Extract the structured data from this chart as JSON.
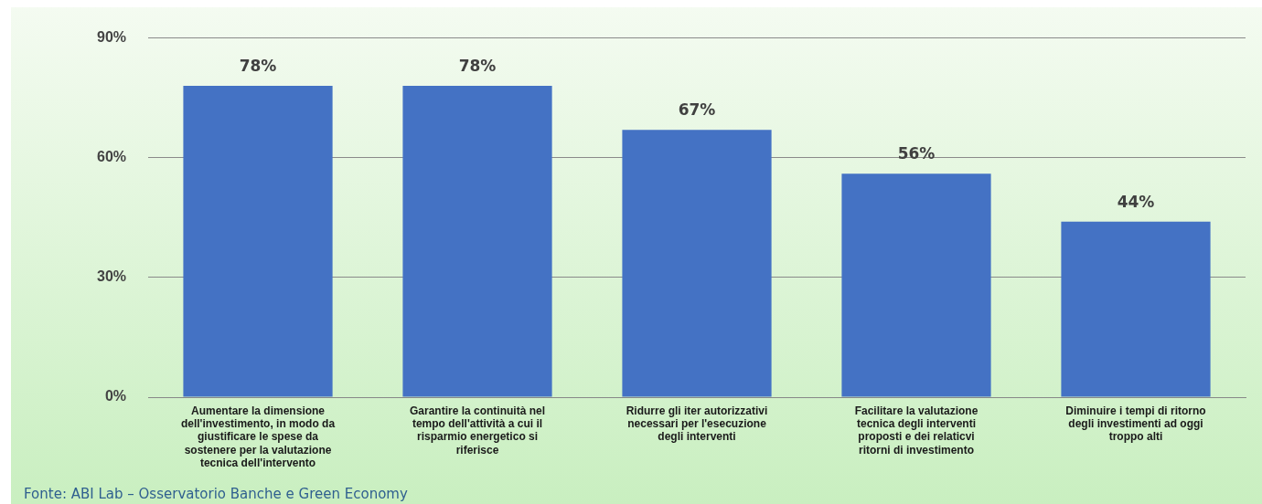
{
  "chart_data": {
    "type": "bar",
    "categories": [
      "Aumentare la dimensione dell'investimento, in modo da giustificare le spese da sostenere per la valutazione tecnica dell'intervento",
      "Garantire la continuità nel tempo dell'attività a cui il risparmio energetico si riferisce",
      "Ridurre gli iter autorizzativi necessari per l'esecuzione degli interventi",
      "Facilitare la valutazione tecnica degli interventi proposti e dei relaticvi ritorni di investimento",
      "Diminuire i tempi di ritorno degli investimenti ad oggi troppo alti"
    ],
    "values": [
      78,
      78,
      67,
      56,
      44
    ],
    "value_labels": [
      "78%",
      "78%",
      "67%",
      "56%",
      "44%"
    ],
    "color": "#4472c4",
    "ylim": [
      0,
      90
    ],
    "yticks": [
      {
        "value": 0,
        "label": "0%"
      },
      {
        "value": 30,
        "label": "30%"
      },
      {
        "value": 60,
        "label": "60%"
      },
      {
        "value": 90,
        "label": "90%"
      }
    ],
    "grid": "y",
    "annotations": [
      "Fonte: ABI Lab – Osservatorio Banche e Green Economy"
    ]
  }
}
